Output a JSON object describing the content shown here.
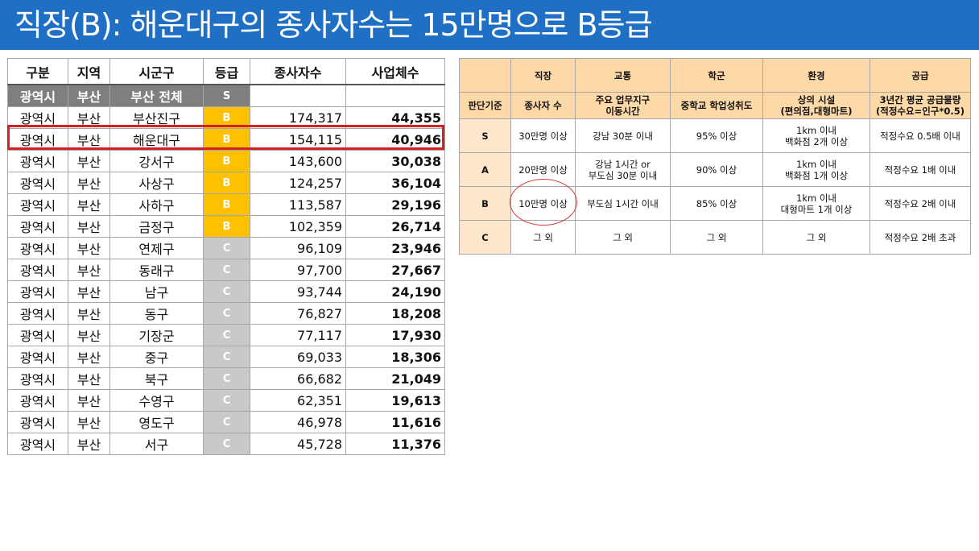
{
  "title": "직장(B): 해운대구의 종사자수는 15만명으로 B등급",
  "left_table": {
    "headers": [
      "구분",
      "지역",
      "시군구",
      "등급",
      "종사자수",
      "사업체수"
    ],
    "total_row": {
      "cat": "광역시",
      "region": "부산",
      "district": "부산 전체",
      "grade": "S"
    },
    "rows": [
      {
        "cat": "광역시",
        "region": "부산",
        "district": "부산진구",
        "grade": "B",
        "workers": "174,317",
        "biz": "44,355"
      },
      {
        "cat": "광역시",
        "region": "부산",
        "district": "해운대구",
        "grade": "B",
        "workers": "154,115",
        "biz": "40,946"
      },
      {
        "cat": "광역시",
        "region": "부산",
        "district": "강서구",
        "grade": "B",
        "workers": "143,600",
        "biz": "30,038"
      },
      {
        "cat": "광역시",
        "region": "부산",
        "district": "사상구",
        "grade": "B",
        "workers": "124,257",
        "biz": "36,104"
      },
      {
        "cat": "광역시",
        "region": "부산",
        "district": "사하구",
        "grade": "B",
        "workers": "113,587",
        "biz": "29,196"
      },
      {
        "cat": "광역시",
        "region": "부산",
        "district": "금정구",
        "grade": "B",
        "workers": "102,359",
        "biz": "26,714"
      },
      {
        "cat": "광역시",
        "region": "부산",
        "district": "연제구",
        "grade": "C",
        "workers": "96,109",
        "biz": "23,946"
      },
      {
        "cat": "광역시",
        "region": "부산",
        "district": "동래구",
        "grade": "C",
        "workers": "97,700",
        "biz": "27,667"
      },
      {
        "cat": "광역시",
        "region": "부산",
        "district": "남구",
        "grade": "C",
        "workers": "93,744",
        "biz": "24,190"
      },
      {
        "cat": "광역시",
        "region": "부산",
        "district": "동구",
        "grade": "C",
        "workers": "76,827",
        "biz": "18,208"
      },
      {
        "cat": "광역시",
        "region": "부산",
        "district": "기장군",
        "grade": "C",
        "workers": "77,117",
        "biz": "17,930"
      },
      {
        "cat": "광역시",
        "region": "부산",
        "district": "중구",
        "grade": "C",
        "workers": "69,033",
        "biz": "18,306"
      },
      {
        "cat": "광역시",
        "region": "부산",
        "district": "북구",
        "grade": "C",
        "workers": "66,682",
        "biz": "21,049"
      },
      {
        "cat": "광역시",
        "region": "부산",
        "district": "수영구",
        "grade": "C",
        "workers": "62,351",
        "biz": "19,613"
      },
      {
        "cat": "광역시",
        "region": "부산",
        "district": "영도구",
        "grade": "C",
        "workers": "46,978",
        "biz": "11,616"
      },
      {
        "cat": "광역시",
        "region": "부산",
        "district": "서구",
        "grade": "C",
        "workers": "45,728",
        "biz": "11,376"
      }
    ]
  },
  "right_table": {
    "categories": [
      "",
      "직장",
      "교통",
      "학군",
      "환경",
      "공급"
    ],
    "criteria": [
      [
        "판단기준"
      ],
      [
        "종사자 수"
      ],
      [
        "주요 업무지구",
        "이동시간"
      ],
      [
        "중학교 학업성취도"
      ],
      [
        "상의 시설",
        "(편의점,대형마트)"
      ],
      [
        "3년간 평균 공급물량",
        "(적정수요=인구*0.5)"
      ]
    ],
    "levels": [
      {
        "grade": "S",
        "cells": [
          [
            "30만명 이상"
          ],
          [
            "강남 30분 이내"
          ],
          [
            "95% 이상"
          ],
          [
            "1km 이내",
            "백화점 2개 이상"
          ],
          [
            "적정수요 0.5배 이내"
          ]
        ]
      },
      {
        "grade": "A",
        "cells": [
          [
            "20만명 이상"
          ],
          [
            "강남 1시간 or",
            "부도심 30분 이내"
          ],
          [
            "90% 이상"
          ],
          [
            "1km 이내",
            "백화점 1개 이상"
          ],
          [
            "적정수요 1배 이내"
          ]
        ]
      },
      {
        "grade": "B",
        "cells": [
          [
            "10만명 이상"
          ],
          [
            "부도심 1시간 이내"
          ],
          [
            "85% 이상"
          ],
          [
            "1km 이내",
            "대형마트 1개 이상"
          ],
          [
            "적정수요 2배 이내"
          ]
        ]
      },
      {
        "grade": "C",
        "cells": [
          [
            "그 외"
          ],
          [
            "그 외"
          ],
          [
            "그 외"
          ],
          [
            "그 외"
          ],
          [
            "적정수요 2배 초과"
          ]
        ]
      }
    ]
  },
  "colors": {
    "banner": "#1f6fc4",
    "grade_S": "#ff0000",
    "grade_B": "#ffc000",
    "grade_C": "#c9c9c9",
    "highlight": "#d42020",
    "criteria_header": "#fdd9a8"
  }
}
